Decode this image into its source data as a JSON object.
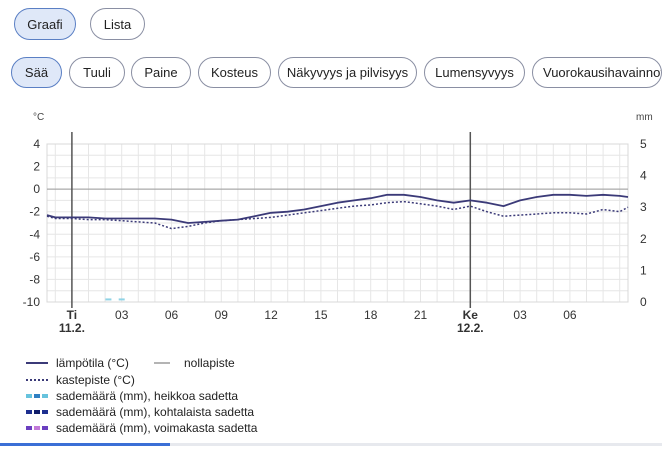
{
  "view_tabs": [
    {
      "label": "Graafi",
      "active": true
    },
    {
      "label": "Lista",
      "active": false
    }
  ],
  "category_tabs": [
    {
      "label": "Sää",
      "active": true
    },
    {
      "label": "Tuuli",
      "active": false
    },
    {
      "label": "Paine",
      "active": false
    },
    {
      "label": "Kosteus",
      "active": false
    },
    {
      "label": "Näkyvyys ja pilvisyys",
      "active": false
    },
    {
      "label": "Lumensyvyys",
      "active": false
    },
    {
      "label": "Vuorokausihavainnot",
      "active": false
    }
  ],
  "chart_data": {
    "type": "line",
    "y_left_unit": "°C",
    "y_right_unit": "mm",
    "y_left_ticks": [
      "4",
      "2",
      "0",
      "-2",
      "-4",
      "-6",
      "-8",
      "-10"
    ],
    "y_right_ticks": [
      "5",
      "4",
      "3",
      "2",
      "1",
      "0"
    ],
    "ylim_left": [
      -10,
      4
    ],
    "ylim_right": [
      0,
      5
    ],
    "x_ticks": [
      "Ti\n11.2.",
      "03",
      "06",
      "09",
      "12",
      "15",
      "18",
      "21",
      "Ke\n12.2.",
      "03",
      "06"
    ],
    "day_markers": [
      {
        "day": "Ti",
        "date": "11.2."
      },
      {
        "day": "Ke",
        "date": "12.2."
      }
    ],
    "x_hours_range": [
      -1.5,
      33.5
    ],
    "series": [
      {
        "name": "lämpötila (°C)",
        "color": "#3b3a78",
        "style": "solid",
        "x": [
          -1.5,
          -1,
          0,
          1,
          2,
          3,
          4,
          5,
          6,
          7,
          8,
          9,
          10,
          11,
          12,
          13,
          14,
          15,
          16,
          17,
          18,
          19,
          20,
          21,
          22,
          23,
          24,
          25,
          26,
          27,
          28,
          29,
          30,
          31,
          32,
          33,
          33.5
        ],
        "y": [
          -2.3,
          -2.5,
          -2.5,
          -2.5,
          -2.6,
          -2.6,
          -2.6,
          -2.6,
          -2.7,
          -3.0,
          -2.9,
          -2.8,
          -2.7,
          -2.4,
          -2.1,
          -2.0,
          -1.8,
          -1.5,
          -1.2,
          -1.0,
          -0.8,
          -0.5,
          -0.5,
          -0.7,
          -1.0,
          -1.2,
          -1.0,
          -1.2,
          -1.5,
          -1.0,
          -0.7,
          -0.5,
          -0.5,
          -0.6,
          -0.5,
          -0.6,
          -0.7
        ]
      },
      {
        "name": "kastepiste (°C)",
        "color": "#3b3a78",
        "style": "dotted",
        "x": [
          -1.5,
          -1,
          0,
          1,
          2,
          3,
          4,
          5,
          6,
          7,
          8,
          9,
          10,
          11,
          12,
          13,
          14,
          15,
          16,
          17,
          18,
          19,
          20,
          21,
          22,
          23,
          24,
          25,
          26,
          27,
          28,
          29,
          30,
          31,
          32,
          33,
          33.5
        ],
        "y": [
          -2.4,
          -2.6,
          -2.6,
          -2.7,
          -2.7,
          -2.8,
          -2.9,
          -3.0,
          -3.5,
          -3.3,
          -3.0,
          -2.8,
          -2.7,
          -2.6,
          -2.5,
          -2.3,
          -2.1,
          -1.9,
          -1.7,
          -1.5,
          -1.4,
          -1.2,
          -1.1,
          -1.3,
          -1.5,
          -1.8,
          -1.5,
          -2.0,
          -2.4,
          -2.3,
          -2.2,
          -2.1,
          -2.1,
          -2.2,
          -1.8,
          -2.0,
          -1.6
        ]
      },
      {
        "name": "sademäärä (mm), heikkoa sadetta",
        "color": "#8fd3e6",
        "type": "bar",
        "x": [
          2.2,
          3
        ],
        "y": [
          0.05,
          0.05
        ]
      }
    ]
  },
  "legend": {
    "items": [
      {
        "label": "lämpötila (°C)",
        "color": "#3b3a78",
        "style": "solid"
      },
      {
        "label": "nollapiste",
        "color": "#9a9a9a",
        "style": "solid"
      },
      {
        "label": "kastepiste (°C)",
        "color": "#3b3a78",
        "style": "dotted"
      },
      {
        "label": "sademäärä (mm), heikkoa sadetta",
        "color": "#67c3dd",
        "color2": "#2f7fc2",
        "style": "dashed"
      },
      {
        "label": "sademäärä (mm), kohtalaista sadetta",
        "color": "#1d2f8f",
        "color2": "#0f1d6a",
        "style": "dashed"
      },
      {
        "label": "sademäärä (mm), voimakasta sadetta",
        "color": "#6b3fc0",
        "color2": "#c27ad8",
        "style": "dashed"
      }
    ]
  }
}
